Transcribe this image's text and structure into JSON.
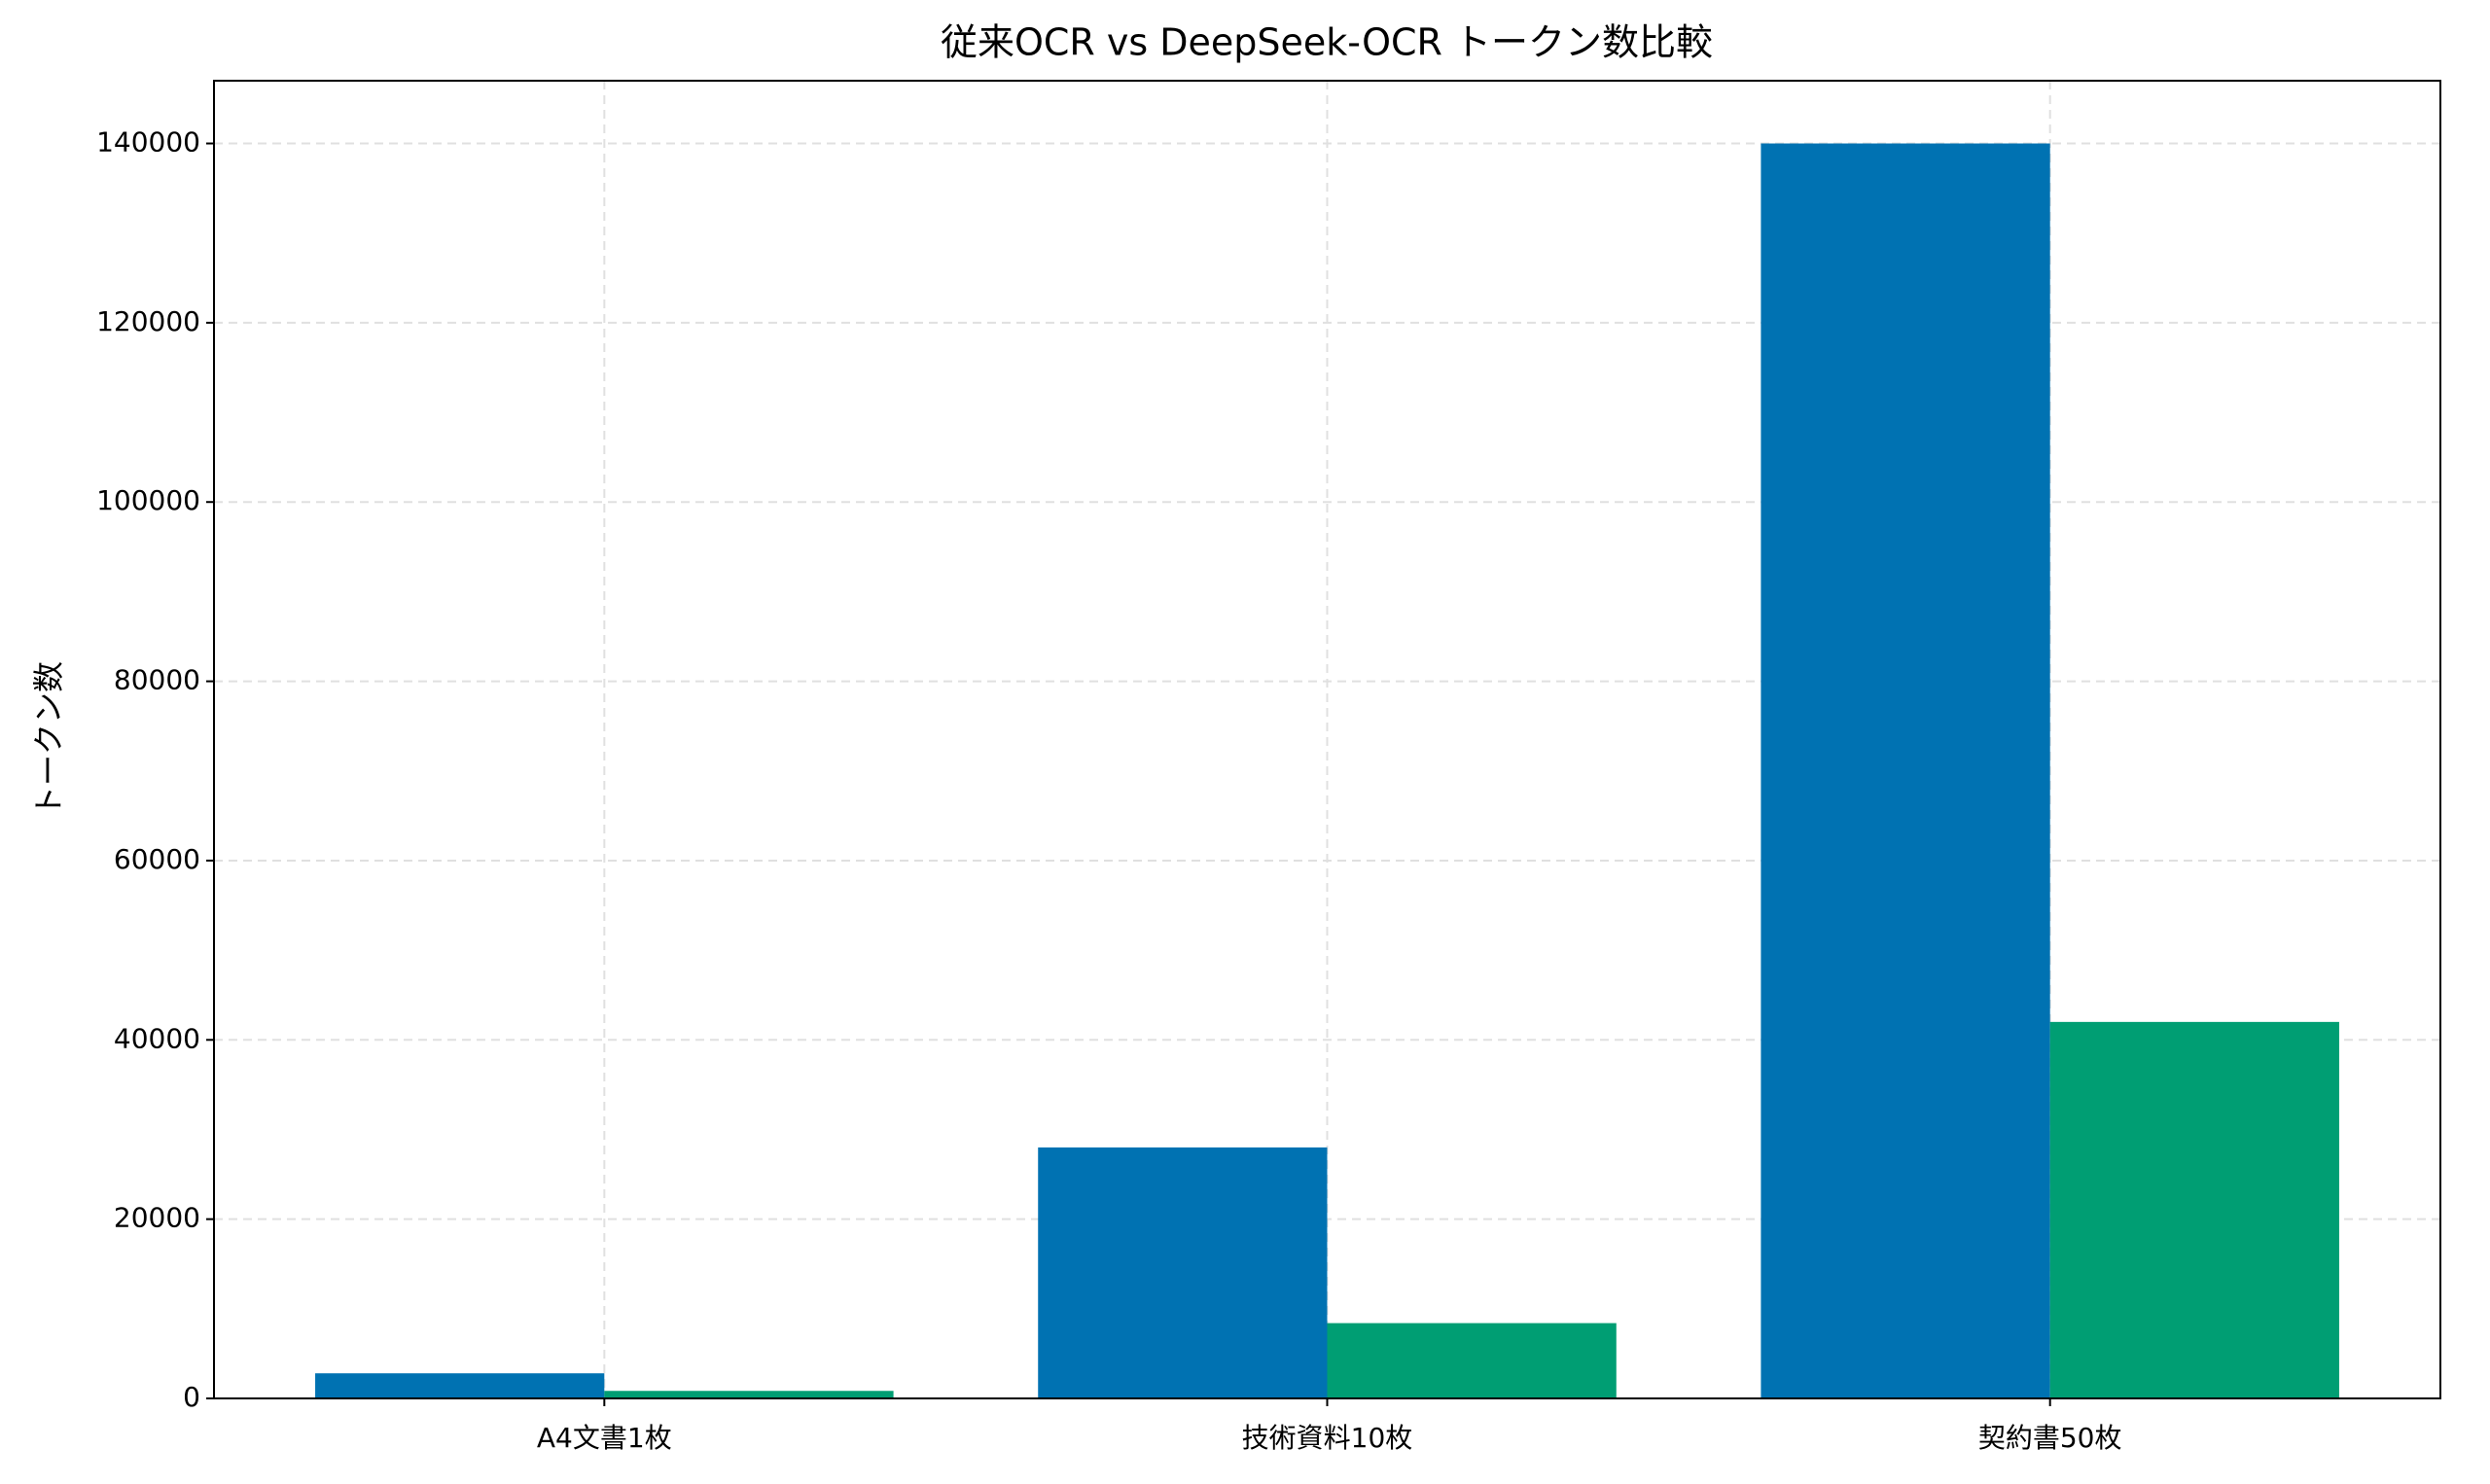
{
  "chart_data": {
    "type": "bar",
    "title": "従来OCR vs DeepSeek-OCR トークン数比較",
    "ylabel": "トークン数",
    "categories": [
      "A4文書1枚",
      "技術資料10枚",
      "契約書50枚"
    ],
    "series": [
      {
        "color": "#0072b2",
        "values": [
          2800,
          28000,
          140000
        ]
      },
      {
        "color": "#009e73",
        "values": [
          840,
          8400,
          42000
        ]
      }
    ],
    "ylim": [
      0,
      147000
    ],
    "yticks": [
      0,
      20000,
      40000,
      60000,
      80000,
      100000,
      120000,
      140000
    ],
    "grid": true
  }
}
